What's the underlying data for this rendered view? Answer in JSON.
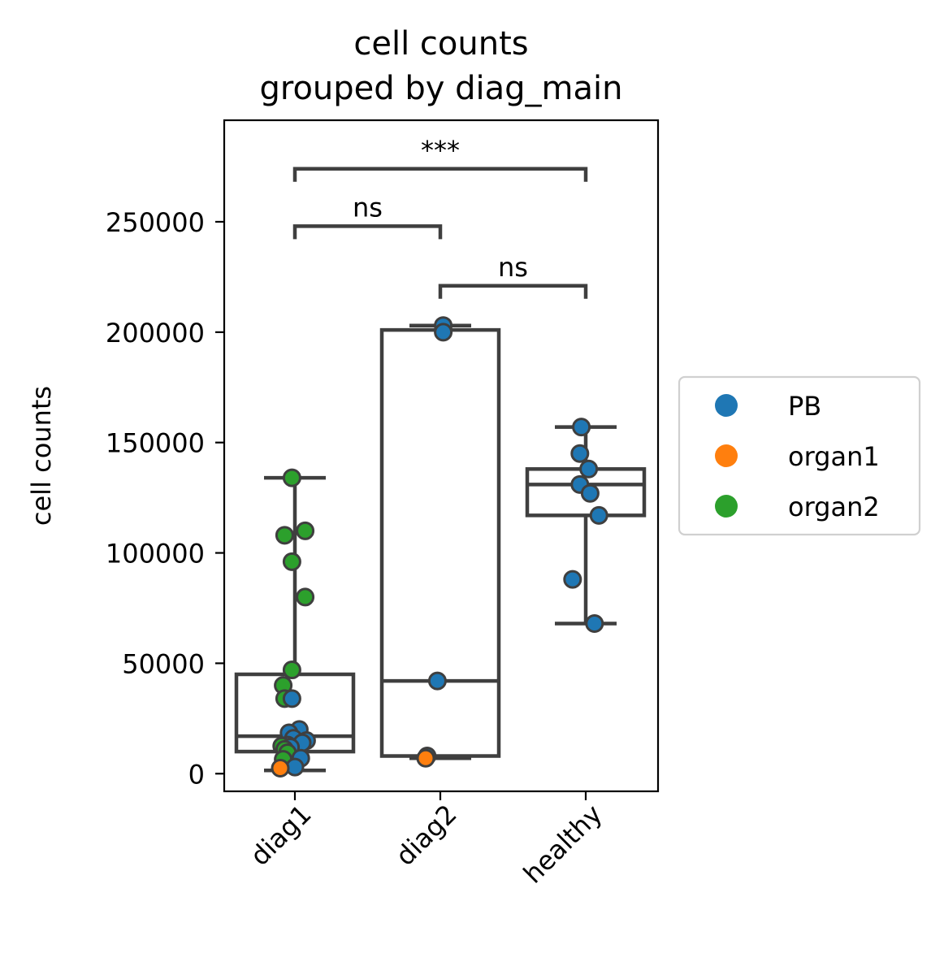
{
  "chart_data": {
    "type": "box",
    "title_line1": "cell counts",
    "title_line2": "grouped by diag_main",
    "xlabel": "",
    "ylabel": "cell counts",
    "categories": [
      "diag1",
      "diag2",
      "healthy"
    ],
    "ylim": [
      -8000,
      296000
    ],
    "yticks": [
      0,
      50000,
      100000,
      150000,
      200000,
      250000
    ],
    "ytick_labels": [
      "0",
      "50000",
      "100000",
      "150000",
      "200000",
      "250000"
    ],
    "boxes": [
      {
        "category": "diag1",
        "whisker_low": 1500,
        "q1": 10000,
        "median": 17000,
        "q3": 45000,
        "whisker_high": 134000
      },
      {
        "category": "diag2",
        "whisker_low": 7000,
        "q1": 8000,
        "median": 42000,
        "q3": 201000,
        "whisker_high": 203000
      },
      {
        "category": "healthy",
        "whisker_low": 68000,
        "q1": 117000,
        "median": 131000,
        "q3": 138000,
        "whisker_high": 157000
      }
    ],
    "points": [
      {
        "category": "diag1",
        "group": "organ2",
        "value": 134000,
        "jitter": -0.02
      },
      {
        "category": "diag1",
        "group": "organ2",
        "value": 108000,
        "jitter": -0.07
      },
      {
        "category": "diag1",
        "group": "organ2",
        "value": 110000,
        "jitter": 0.07
      },
      {
        "category": "diag1",
        "group": "organ2",
        "value": 96000,
        "jitter": -0.02
      },
      {
        "category": "diag1",
        "group": "organ2",
        "value": 80000,
        "jitter": 0.07
      },
      {
        "category": "diag1",
        "group": "organ2",
        "value": 47000,
        "jitter": -0.02
      },
      {
        "category": "diag1",
        "group": "organ2",
        "value": 40000,
        "jitter": -0.08
      },
      {
        "category": "diag1",
        "group": "organ2",
        "value": 34000,
        "jitter": -0.07
      },
      {
        "category": "diag1",
        "group": "PB",
        "value": 34000,
        "jitter": -0.02
      },
      {
        "category": "diag1",
        "group": "PB",
        "value": 20000,
        "jitter": 0.03
      },
      {
        "category": "diag1",
        "group": "PB",
        "value": 18500,
        "jitter": -0.04
      },
      {
        "category": "diag1",
        "group": "PB",
        "value": 16000,
        "jitter": -0.01
      },
      {
        "category": "diag1",
        "group": "PB",
        "value": 15000,
        "jitter": 0.08
      },
      {
        "category": "diag1",
        "group": "PB",
        "value": 14000,
        "jitter": 0.05
      },
      {
        "category": "diag1",
        "group": "PB",
        "value": 13000,
        "jitter": -0.05
      },
      {
        "category": "diag1",
        "group": "organ2",
        "value": 12500,
        "jitter": -0.09
      },
      {
        "category": "diag1",
        "group": "PB",
        "value": 12000,
        "jitter": -0.03
      },
      {
        "category": "diag1",
        "group": "organ2",
        "value": 11000,
        "jitter": -0.07
      },
      {
        "category": "diag1",
        "group": "organ2",
        "value": 9500,
        "jitter": -0.05
      },
      {
        "category": "diag1",
        "group": "PB",
        "value": 7000,
        "jitter": 0.04
      },
      {
        "category": "diag1",
        "group": "organ2",
        "value": 6500,
        "jitter": -0.08
      },
      {
        "category": "diag1",
        "group": "PB",
        "value": 3000,
        "jitter": 0.0
      },
      {
        "category": "diag1",
        "group": "organ1",
        "value": 2500,
        "jitter": -0.1
      },
      {
        "category": "diag2",
        "group": "PB",
        "value": 203000,
        "jitter": 0.02
      },
      {
        "category": "diag2",
        "group": "PB",
        "value": 200000,
        "jitter": 0.02
      },
      {
        "category": "diag2",
        "group": "PB",
        "value": 42000,
        "jitter": -0.02
      },
      {
        "category": "diag2",
        "group": "PB",
        "value": 8000,
        "jitter": -0.09
      },
      {
        "category": "diag2",
        "group": "organ1",
        "value": 7000,
        "jitter": -0.1
      },
      {
        "category": "healthy",
        "group": "PB",
        "value": 157000,
        "jitter": -0.03
      },
      {
        "category": "healthy",
        "group": "PB",
        "value": 145000,
        "jitter": -0.04
      },
      {
        "category": "healthy",
        "group": "PB",
        "value": 138000,
        "jitter": 0.02
      },
      {
        "category": "healthy",
        "group": "PB",
        "value": 131000,
        "jitter": -0.04
      },
      {
        "category": "healthy",
        "group": "PB",
        "value": 127000,
        "jitter": 0.03
      },
      {
        "category": "healthy",
        "group": "PB",
        "value": 117000,
        "jitter": 0.09
      },
      {
        "category": "healthy",
        "group": "PB",
        "value": 88000,
        "jitter": -0.09
      },
      {
        "category": "healthy",
        "group": "PB",
        "value": 68000,
        "jitter": 0.06
      }
    ],
    "significance": [
      {
        "from": "diag1",
        "to": "diag2",
        "y": 248000,
        "label": "ns"
      },
      {
        "from": "diag2",
        "to": "healthy",
        "y": 221000,
        "label": "ns"
      },
      {
        "from": "diag1",
        "to": "healthy",
        "y": 274000,
        "label": "***"
      }
    ],
    "legend": {
      "placement": "outside right",
      "entries": [
        {
          "label": "PB",
          "color": "#1f77b4"
        },
        {
          "label": "organ1",
          "color": "#ff7f0e"
        },
        {
          "label": "organ2",
          "color": "#2ca02c"
        }
      ]
    },
    "grid": false,
    "colors": {
      "box_line": "#3f3f3f",
      "point_edge": "#3f3f3f"
    }
  }
}
